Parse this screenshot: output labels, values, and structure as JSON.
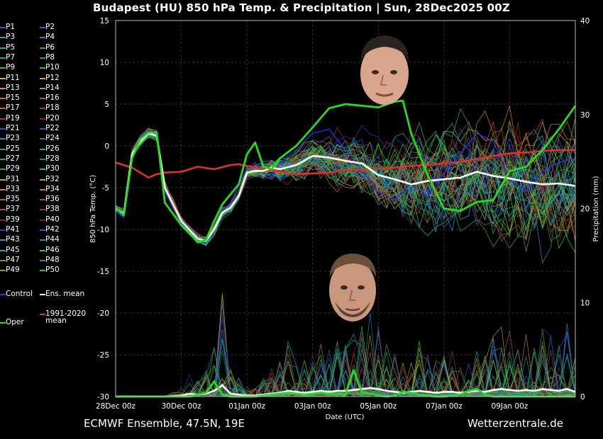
{
  "title": "Budapest  (HU)  850 hPa Temp. & Precipitation | Sun, 28Dec2025 00Z",
  "footer": {
    "left": "ECMWF Ensemble, 47.5N, 19E",
    "right": "Wetterzentrale.de"
  },
  "colors": {
    "background": "#000000",
    "control": "#2a2aff",
    "ens_mean": "#ffffff",
    "climate": "#e03030",
    "oper": "#22dd22"
  },
  "legend": {
    "members": [
      "P1",
      "P2",
      "P3",
      "P4",
      "P5",
      "P6",
      "P7",
      "P8",
      "P9",
      "P10",
      "P11",
      "P12",
      "P13",
      "P14",
      "P15",
      "P16",
      "P17",
      "P18",
      "P19",
      "P20",
      "P21",
      "P22",
      "P23",
      "P24",
      "P25",
      "P26",
      "P27",
      "P28",
      "P29",
      "P30",
      "P31",
      "P32",
      "P33",
      "P34",
      "P35",
      "P36",
      "P37",
      "P38",
      "P39",
      "P40",
      "P41",
      "P42",
      "P43",
      "P44",
      "P45",
      "P46",
      "P47",
      "P48",
      "P49",
      "P50"
    ],
    "member_colors": [
      "#3b5bd6",
      "#1f6fd0",
      "#2aa0b0",
      "#1f8fc8",
      "#20b0a0",
      "#30b050",
      "#2aa090",
      "#28a060",
      "#30c040",
      "#38c030",
      "#b8c030",
      "#c8b020",
      "#d0a020",
      "#d09020",
      "#c87020",
      "#c05020",
      "#c06030",
      "#a04030",
      "#b03030",
      "#902020",
      "#3050c0",
      "#2060d0",
      "#2090c0",
      "#2080b0",
      "#20a0a0",
      "#20b080",
      "#30a070",
      "#209050",
      "#20b040",
      "#30c030",
      "#a0b030",
      "#c0a020",
      "#c09020",
      "#d08020",
      "#c06020",
      "#b05020",
      "#b05030",
      "#a03020",
      "#a02020",
      "#802020",
      "#2040c0",
      "#2060e0",
      "#20a0c0",
      "#2090d0",
      "#20b0b0",
      "#20c090",
      "#30b060",
      "#20a040",
      "#30c040",
      "#20d020"
    ],
    "control": "Control",
    "ens_mean": "Ens. mean",
    "climate_line1": "1991-2020",
    "climate_line2": "mean",
    "oper": "Oper"
  },
  "chart_data": {
    "type": "line",
    "title": "Budapest  (HU)  850 hPa Temp. & Precipitation | Sun, 28Dec2025 00Z",
    "xlabel": "Date (UTC)",
    "ylabel_left": "850 hPa Temp. (°C)",
    "ylabel_right": "Precipitation (mm)",
    "x_ticks": [
      "28Dec 00z",
      "30Dec 00z",
      "01Jan 00z",
      "03Jan 00z",
      "05Jan 00z",
      "07Jan 00z",
      "09Jan 00z"
    ],
    "x_range_hours": [
      0,
      336
    ],
    "ylim_left": [
      -30,
      15
    ],
    "ylim_right": [
      0,
      40
    ],
    "yticks_left": [
      15,
      10,
      5,
      0,
      -5,
      -10,
      -15,
      -20,
      -25,
      -30
    ],
    "yticks_right": [
      40,
      30,
      20,
      10,
      0
    ],
    "grid": true,
    "series": [
      {
        "name": "Ens. mean",
        "x": [
          0,
          6,
          12,
          18,
          24,
          30,
          36,
          48,
          60,
          66,
          72,
          78,
          84,
          90,
          96,
          102,
          108,
          114,
          120,
          132,
          144,
          156,
          168,
          180,
          192,
          204,
          216,
          228,
          240,
          252,
          264,
          276,
          288,
          300,
          312,
          324,
          336
        ],
        "values": [
          -7.5,
          -8.1,
          -1.0,
          0.5,
          1.5,
          1.2,
          -5.0,
          -9.0,
          -11.1,
          -11.4,
          -10.0,
          -8.0,
          -7.4,
          -6.0,
          -3.2,
          -3.0,
          -3.0,
          -2.6,
          -2.8,
          -2.3,
          -1.2,
          -1.4,
          -1.8,
          -2.1,
          -3.5,
          -4.0,
          -4.6,
          -4.2,
          -4.0,
          -3.8,
          -3.1,
          -3.6,
          -3.9,
          -4.3,
          -4.6,
          -4.5,
          -4.8
        ]
      },
      {
        "name": "1991-2020 mean",
        "x": [
          0,
          12,
          24,
          30,
          36,
          48,
          60,
          72,
          84,
          90,
          96,
          108,
          120,
          132,
          144,
          156,
          168,
          180,
          192,
          204,
          216,
          228,
          240,
          252,
          264,
          276,
          288,
          300,
          312,
          324,
          336
        ],
        "values": [
          -2.0,
          -2.6,
          -3.8,
          -3.4,
          -3.2,
          -3.1,
          -2.5,
          -2.8,
          -2.3,
          -2.2,
          -2.4,
          -2.8,
          -3.1,
          -3.4,
          -3.3,
          -3.2,
          -2.9,
          -2.9,
          -2.7,
          -2.6,
          -2.4,
          -2.3,
          -2.1,
          -1.9,
          -1.6,
          -1.2,
          -0.9,
          -0.8,
          -0.6,
          -0.5,
          -0.5
        ]
      },
      {
        "name": "Oper",
        "x": [
          0,
          6,
          12,
          18,
          24,
          30,
          36,
          48,
          60,
          66,
          72,
          78,
          84,
          90,
          96,
          102,
          108,
          114,
          120,
          132,
          144,
          156,
          168,
          180,
          192,
          204,
          210,
          216,
          228,
          240,
          252,
          264,
          276,
          288,
          300,
          312,
          324,
          336
        ],
        "values": [
          -7.4,
          -8.3,
          -1.5,
          0.8,
          1.6,
          1.6,
          -6.8,
          -9.5,
          -11.5,
          -11.3,
          -9.0,
          -7.0,
          -5.8,
          -4.6,
          -1.0,
          0.4,
          -2.5,
          -2.8,
          -1.5,
          0.0,
          2.2,
          4.5,
          5.0,
          4.8,
          4.6,
          5.3,
          5.4,
          1.5,
          -3.5,
          -7.5,
          -7.8,
          -6.7,
          -6.5,
          -3.0,
          -2.5,
          -0.5,
          2.0,
          4.8
        ]
      },
      {
        "name": "Control",
        "x": [
          0,
          6,
          12,
          18,
          24,
          30,
          36,
          48,
          60,
          66,
          72,
          78,
          84,
          90,
          96,
          102,
          108,
          114,
          120,
          132,
          144,
          156,
          168,
          180,
          192,
          204,
          216,
          228,
          240,
          252,
          264,
          276,
          288,
          300,
          312,
          324,
          336
        ],
        "values": [
          -7.6,
          -8.5,
          -1.2,
          1.0,
          1.8,
          1.4,
          -5.5,
          -9.2,
          -11.0,
          -11.6,
          -10.2,
          -7.8,
          -6.8,
          -4.8,
          -2.7,
          -2.0,
          -3.2,
          -3.8,
          -2.0,
          -0.5,
          1.5,
          2.0,
          -0.5,
          -3.0,
          -5.5,
          -6.5,
          -4.5,
          -6.0,
          -3.2,
          -1.0,
          1.5,
          0.5,
          -4.0,
          -5.5,
          -3.0,
          -2.0,
          -1.5
        ]
      }
    ],
    "precip_series": [
      {
        "name": "Ens. mean",
        "x": [
          0,
          6,
          12,
          18,
          24,
          30,
          36,
          48,
          54,
          60,
          66,
          72,
          78,
          84,
          90,
          96,
          102,
          108,
          114,
          120,
          126,
          132,
          138,
          144,
          150,
          156,
          162,
          168,
          174,
          180,
          186,
          192,
          198,
          204,
          210,
          216,
          222,
          228,
          234,
          240,
          246,
          252,
          258,
          264,
          270,
          276,
          282,
          288,
          294,
          300,
          306,
          312,
          318,
          324,
          330,
          336
        ],
        "values": [
          0,
          0,
          0,
          0,
          0,
          0,
          0,
          0.1,
          0.3,
          0.2,
          0.3,
          0.6,
          1.2,
          0.3,
          0.2,
          0.1,
          0.1,
          0.2,
          0.3,
          0.4,
          0.6,
          0.5,
          0.4,
          0.5,
          0.6,
          0.5,
          0.6,
          0.6,
          0.7,
          0.8,
          0.9,
          0.8,
          0.6,
          0.5,
          0.4,
          0.5,
          0.6,
          0.5,
          0.4,
          0.5,
          0.5,
          0.4,
          0.5,
          0.6,
          0.5,
          0.7,
          0.8,
          0.7,
          0.6,
          0.7,
          0.6,
          0.8,
          0.7,
          0.6,
          0.8,
          0.5
        ]
      },
      {
        "name": "Oper",
        "x": [
          0,
          6,
          12,
          18,
          24,
          30,
          36,
          48,
          54,
          60,
          66,
          72,
          78,
          84,
          90,
          96,
          102,
          108,
          114,
          120,
          126,
          132,
          138,
          144,
          150,
          156,
          162,
          168,
          174,
          180,
          186,
          192,
          198,
          204,
          210,
          216,
          222,
          228,
          234,
          240,
          246,
          252,
          258,
          264,
          270,
          276,
          282,
          288,
          294,
          300,
          306,
          312,
          318,
          324,
          330,
          336
        ],
        "values": [
          0,
          0,
          0,
          0,
          0,
          0,
          0,
          0,
          0,
          0.2,
          0.4,
          1.6,
          0.2,
          0,
          0,
          0,
          0,
          0.1,
          0.2,
          0.3,
          0.4,
          0.3,
          0.2,
          0.3,
          0.4,
          0.3,
          0.3,
          0.2,
          2.8,
          0.4,
          0.3,
          0.1,
          0,
          0.1,
          0.5,
          0.4,
          0.2,
          0.1,
          0,
          0,
          0.1,
          0.2,
          0.6,
          0.8,
          0.2,
          0,
          0,
          0,
          0,
          0,
          0,
          0,
          0,
          0,
          0,
          0
        ]
      }
    ],
    "ensemble_members_count": 50
  }
}
